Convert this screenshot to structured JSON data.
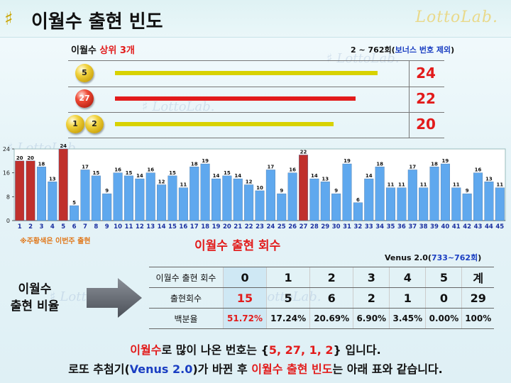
{
  "header": {
    "title": "이월수 출현 빈도",
    "brand": "LottoLab."
  },
  "top": {
    "label_prefix": "이월수 ",
    "label_highlight": "상위 3개",
    "range_prefix": "2 ~ 762회(",
    "range_note": "보너스 번호 제외",
    "range_suffix": ")",
    "rows": [
      {
        "balls": [
          "5"
        ],
        "ball_colors": [
          "yellow"
        ],
        "count": 24,
        "bar_color": "#d8d200"
      },
      {
        "balls": [
          "27"
        ],
        "ball_colors": [
          "red"
        ],
        "count": 22,
        "bar_color": "#e21b1b"
      },
      {
        "balls": [
          "1",
          "2"
        ],
        "ball_colors": [
          "yellow",
          "yellow"
        ],
        "count": 20,
        "bar_color": "#d8d200"
      }
    ]
  },
  "chart_data": {
    "type": "bar",
    "x": [
      1,
      2,
      3,
      4,
      5,
      6,
      7,
      8,
      9,
      10,
      11,
      12,
      13,
      14,
      15,
      16,
      17,
      18,
      19,
      20,
      21,
      22,
      23,
      24,
      25,
      26,
      27,
      28,
      29,
      30,
      31,
      32,
      33,
      34,
      35,
      36,
      37,
      38,
      39,
      40,
      41,
      42,
      43,
      44,
      45
    ],
    "values": [
      20,
      20,
      18,
      13,
      24,
      5,
      17,
      15,
      9,
      16,
      15,
      14,
      16,
      12,
      15,
      11,
      18,
      19,
      14,
      15,
      14,
      12,
      10,
      17,
      9,
      16,
      22,
      14,
      13,
      9,
      19,
      6,
      14,
      18,
      11,
      11,
      17,
      11,
      18,
      19,
      11,
      9,
      16,
      13,
      11
    ],
    "highlight": [
      1,
      2,
      5,
      27
    ],
    "highlight_color": "#c0302c",
    "bar_color": "#5fa8ee",
    "ylim": [
      0,
      24
    ],
    "yticks": [
      0,
      8,
      16,
      24
    ],
    "xlabel": "이월수 출현 회수",
    "note": "※주황색은 이번주 출현"
  },
  "ratio": {
    "label_line1": "이월수",
    "label_line2": "출현 비율",
    "venus_prefix": "Venus 2.0(",
    "venus_range": "733~762회",
    "venus_suffix": ")",
    "header_row_label": "이월수 출현 회수",
    "header": [
      "0",
      "1",
      "2",
      "3",
      "4",
      "5",
      "계"
    ],
    "count_row_label": "출현회수",
    "counts": [
      "15",
      "5",
      "6",
      "2",
      "1",
      "0",
      "29"
    ],
    "pct_row_label": "백분율",
    "percents": [
      "51.72%",
      "17.24%",
      "20.69%",
      "6.90%",
      "3.45%",
      "0.00%",
      "100%"
    ]
  },
  "conclusion": {
    "l1_a": "이월수",
    "l1_b": "로 많이 나온 번호는 {",
    "l1_c": "5, 27, 1, 2",
    "l1_d": "} 입니다.",
    "l2_a": "로또 추첨기(",
    "l2_b": "Venus 2.0",
    "l2_c": ")가 바뀐 후 ",
    "l2_d": "이월수 출현 빈도",
    "l2_e": "는 아래 표와 같습니다."
  }
}
